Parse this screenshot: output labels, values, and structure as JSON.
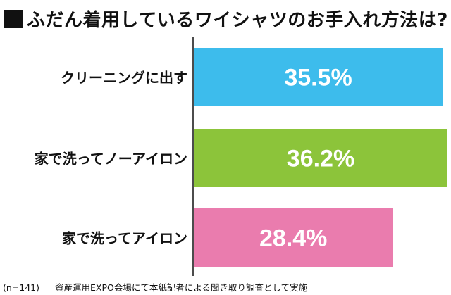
{
  "title": "ふだん着用しているワイシャツのお手入れ方法は?",
  "footnote": {
    "sample": "(n=141)",
    "source": "資産運用EXPO会場にて本紙記者による聞き取り調査として実施"
  },
  "chart_data": {
    "type": "bar",
    "orientation": "horizontal",
    "categories": [
      "クリーニングに出す",
      "家で洗ってノーアイロン",
      "家で洗ってアイロン"
    ],
    "values": [
      35.5,
      36.2,
      28.4
    ],
    "value_labels": [
      "35.5%",
      "36.2%",
      "28.4%"
    ],
    "colors": [
      "#3dbcec",
      "#8cc43a",
      "#ea7cae"
    ],
    "xlim": [
      0,
      36.2
    ],
    "grid": false
  }
}
